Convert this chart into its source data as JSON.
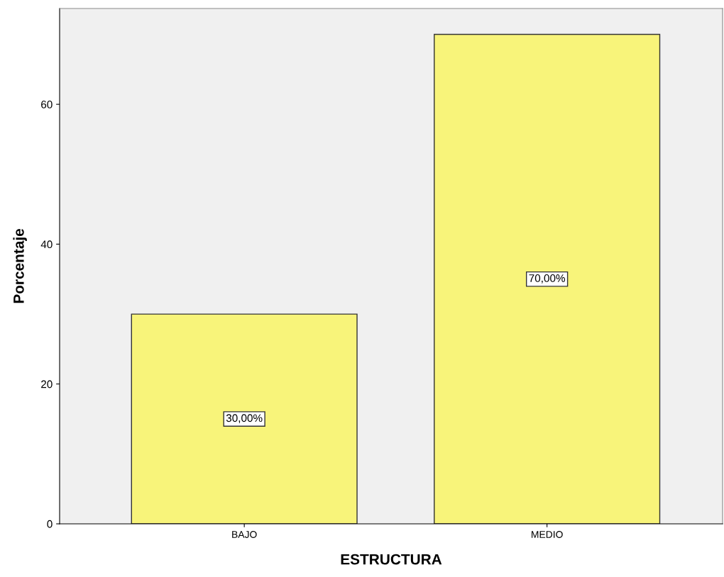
{
  "chart_data": {
    "type": "bar",
    "xlabel": "ESTRUCTURA",
    "ylabel": "Porcentaje",
    "categories": [
      "BAJO",
      "MEDIO"
    ],
    "values": [
      30,
      70
    ],
    "value_labels": [
      "30,00%",
      "70,00%"
    ],
    "color": "#f8f47a",
    "ylim": [
      0,
      73.7
    ],
    "yticks": [
      0,
      20,
      40,
      60
    ],
    "grid": false
  }
}
